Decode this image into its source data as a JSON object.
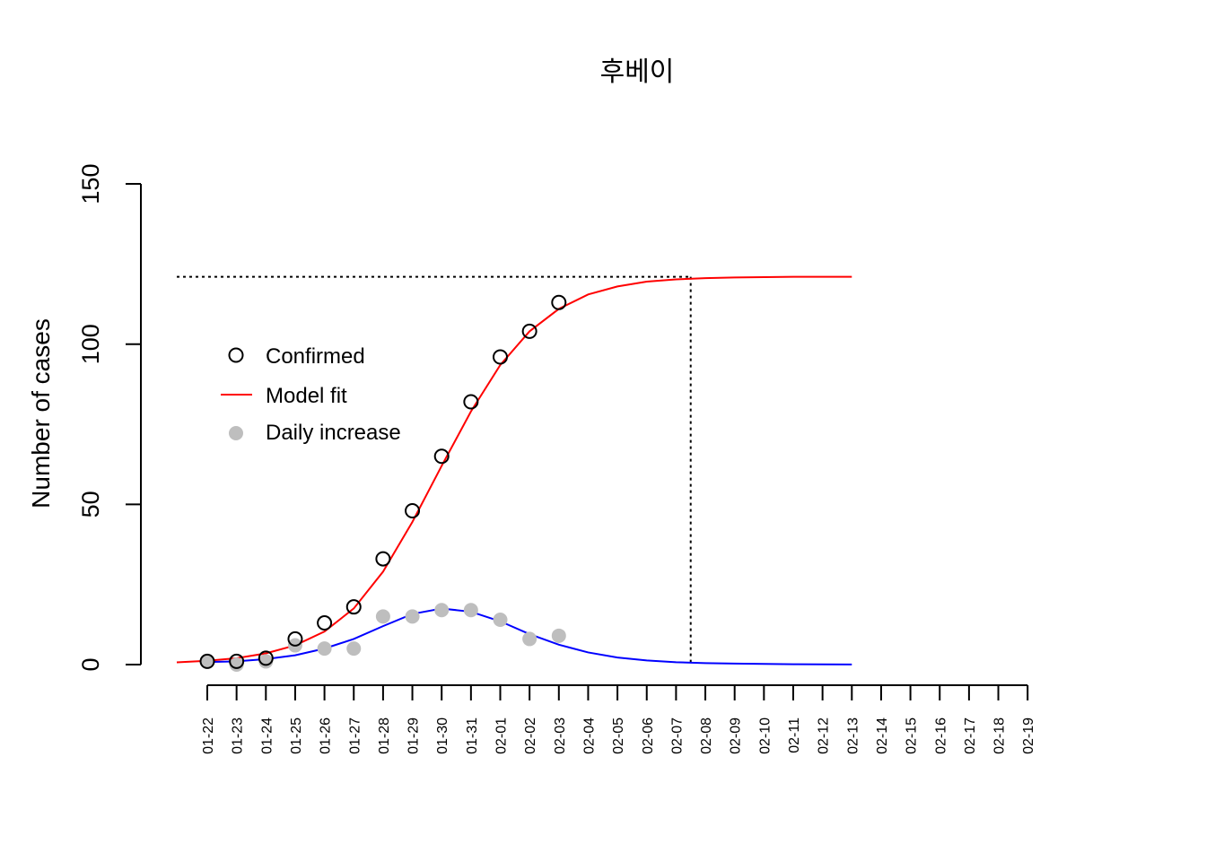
{
  "chart_data": {
    "type": "line",
    "title": "후베이",
    "xlabel": "",
    "ylabel": "Number of cases",
    "ylim": [
      0,
      150
    ],
    "y_ticks": [
      0,
      50,
      100,
      150
    ],
    "x_tick_labels": [
      "01-22",
      "01-23",
      "01-24",
      "01-25",
      "01-26",
      "01-27",
      "01-28",
      "01-29",
      "01-30",
      "01-31",
      "02-01",
      "02-02",
      "02-03",
      "02-04",
      "02-05",
      "02-06",
      "02-07",
      "02-08",
      "02-09",
      "02-10",
      "02-11",
      "02-12",
      "02-13",
      "02-14",
      "02-15",
      "02-16",
      "02-17",
      "02-18",
      "02-19"
    ],
    "grid": false,
    "legend_position": "left",
    "legend": [
      {
        "label": "Confirmed",
        "symbol": "open-circle",
        "color": "#000000"
      },
      {
        "label": "Model fit",
        "symbol": "line",
        "color": "#ff0000"
      },
      {
        "label": "Daily increase",
        "symbol": "filled-circle",
        "color": "#bebebe"
      }
    ],
    "series": [
      {
        "name": "Confirmed",
        "kind": "points-open",
        "color": "#000000",
        "x": [
          "01-22",
          "01-23",
          "01-24",
          "01-25",
          "01-26",
          "01-27",
          "01-28",
          "01-29",
          "01-30",
          "01-31",
          "02-01",
          "02-02",
          "02-03"
        ],
        "values": [
          1,
          1,
          2,
          8,
          13,
          18,
          33,
          48,
          65,
          82,
          96,
          104,
          113
        ]
      },
      {
        "name": "Daily increase",
        "kind": "points-filled",
        "color": "#bebebe",
        "x": [
          "01-22",
          "01-23",
          "01-24",
          "01-25",
          "01-26",
          "01-27",
          "01-28",
          "01-29",
          "01-30",
          "01-31",
          "02-01",
          "02-02",
          "02-03"
        ],
        "values": [
          1,
          0,
          1,
          6,
          5,
          5,
          15,
          15,
          17,
          17,
          14,
          8,
          9
        ]
      },
      {
        "name": "Model fit",
        "kind": "line",
        "color": "#ff0000",
        "x": [
          "01-21",
          "01-22",
          "01-23",
          "01-24",
          "01-25",
          "01-26",
          "01-27",
          "01-28",
          "01-29",
          "01-30",
          "01-31",
          "02-01",
          "02-02",
          "02-03",
          "02-04",
          "02-05",
          "02-06",
          "02-07",
          "02-08",
          "02-09",
          "02-10",
          "02-11",
          "02-12",
          "02-13"
        ],
        "values": [
          0.7,
          1.2,
          2.0,
          3.5,
          6.0,
          10.3,
          17.5,
          29.0,
          44.5,
          62.0,
          79.0,
          93.5,
          104.0,
          111.0,
          115.5,
          118.0,
          119.5,
          120.2,
          120.6,
          120.8,
          120.9,
          121.0,
          121.0,
          121.0
        ]
      },
      {
        "name": "Model daily increase",
        "kind": "line",
        "color": "#0000ff",
        "x": [
          "01-22",
          "01-23",
          "01-24",
          "01-25",
          "01-26",
          "01-27",
          "01-28",
          "01-29",
          "01-30",
          "01-31",
          "02-01",
          "02-02",
          "02-03",
          "02-04",
          "02-05",
          "02-06",
          "02-07",
          "02-08",
          "02-09",
          "02-10",
          "02-11",
          "02-12",
          "02-13"
        ],
        "values": [
          0.8,
          1.0,
          1.7,
          2.9,
          5.0,
          8.0,
          12.0,
          15.8,
          17.5,
          16.5,
          13.5,
          9.5,
          6.2,
          3.8,
          2.2,
          1.3,
          0.75,
          0.45,
          0.3,
          0.2,
          0.12,
          0.08,
          0.05
        ]
      }
    ],
    "reference_lines": {
      "plateau_value": 121,
      "peak_date": "02-07/02-08"
    }
  }
}
